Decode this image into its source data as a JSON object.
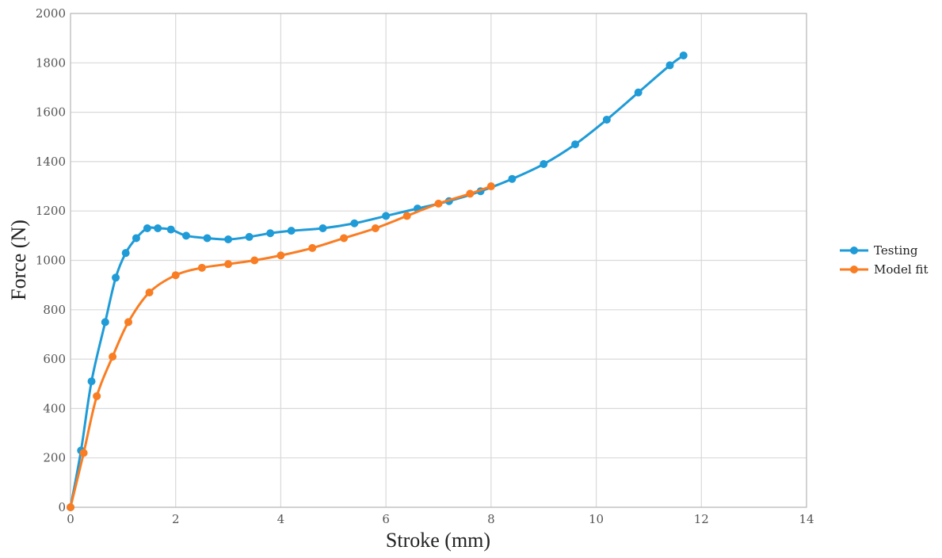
{
  "chart_data": {
    "type": "line",
    "xlabel": "Stroke (mm)",
    "ylabel": "Force (N)",
    "xlim": [
      0,
      14
    ],
    "ylim": [
      0,
      2000
    ],
    "xticks": [
      0,
      2,
      4,
      6,
      8,
      10,
      12,
      14
    ],
    "yticks": [
      0,
      200,
      400,
      600,
      800,
      1000,
      1200,
      1400,
      1600,
      1800,
      2000
    ],
    "grid": true,
    "legend": "right",
    "series": [
      {
        "name": "Testing",
        "color": "#1f9bd7",
        "x": [
          0,
          0.2,
          0.4,
          0.66,
          0.86,
          1.05,
          1.25,
          1.46,
          1.66,
          1.91,
          2.2,
          2.6,
          3.0,
          3.4,
          3.8,
          4.2,
          4.8,
          5.4,
          6.0,
          6.6,
          7.2,
          7.8,
          8.4,
          9.0,
          9.6,
          10.2,
          10.8,
          11.4,
          11.66
        ],
        "values": [
          0,
          230,
          510,
          750,
          930,
          1030,
          1090,
          1130,
          1130,
          1125,
          1100,
          1090,
          1085,
          1095,
          1110,
          1120,
          1130,
          1150,
          1180,
          1210,
          1240,
          1280,
          1330,
          1390,
          1470,
          1570,
          1680,
          1790,
          1830
        ]
      },
      {
        "name": "Model fit",
        "color": "#f97d23",
        "x": [
          0,
          0.25,
          0.5,
          0.8,
          1.1,
          1.5,
          2.0,
          2.5,
          3.0,
          3.5,
          4.0,
          4.6,
          5.2,
          5.8,
          6.4,
          7.0,
          7.6,
          8.0
        ],
        "values": [
          0,
          220,
          450,
          610,
          750,
          870,
          940,
          970,
          985,
          1000,
          1020,
          1050,
          1090,
          1130,
          1180,
          1230,
          1270,
          1300
        ]
      }
    ]
  }
}
